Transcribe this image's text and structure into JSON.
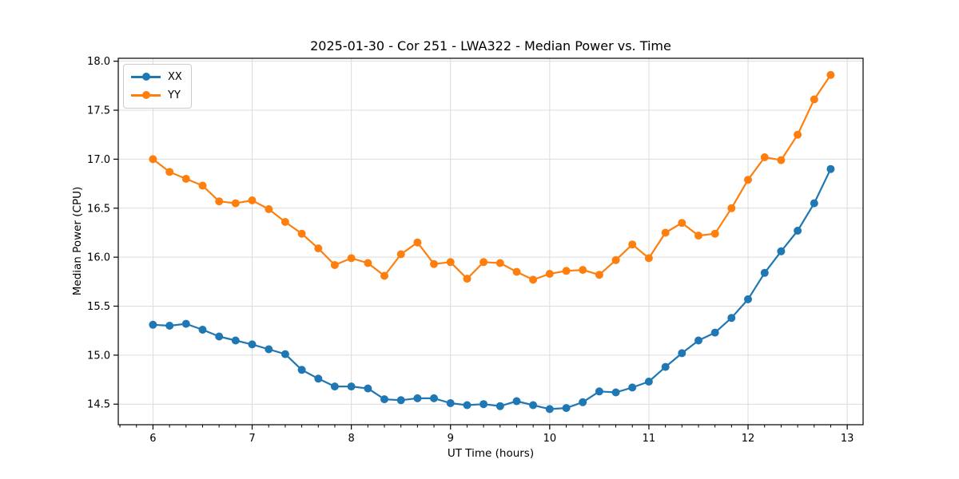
{
  "chart_data": {
    "type": "line",
    "title": "2025-01-30 - Cor 251 - LWA322 - Median Power vs. Time",
    "xlabel": "UT Time (hours)",
    "ylabel": "Median Power (CPU)",
    "xlim": [
      5.65,
      13.16
    ],
    "ylim": [
      14.29,
      18.03
    ],
    "x_major_ticks": [
      6,
      7,
      8,
      9,
      10,
      11,
      12,
      13
    ],
    "x_minor_subdivisions": 6,
    "y_ticks": [
      14.5,
      15.0,
      15.5,
      16.0,
      16.5,
      17.0,
      17.5,
      18.0
    ],
    "grid": true,
    "grid_color": "#dcdcdc",
    "axis_color": "#000000",
    "legend_position": "upper-left",
    "x": [
      6.0,
      6.167,
      6.333,
      6.5,
      6.667,
      6.833,
      7.0,
      7.167,
      7.333,
      7.5,
      7.667,
      7.833,
      8.0,
      8.167,
      8.333,
      8.5,
      8.667,
      8.833,
      9.0,
      9.167,
      9.333,
      9.5,
      9.667,
      9.833,
      10.0,
      10.167,
      10.333,
      10.5,
      10.667,
      10.833,
      11.0,
      11.167,
      11.333,
      11.5,
      11.667,
      11.833,
      12.0,
      12.167,
      12.333,
      12.5,
      12.667,
      12.833
    ],
    "series": [
      {
        "name": "XX",
        "color": "#1f77b4",
        "values": [
          15.31,
          15.3,
          15.32,
          15.26,
          15.19,
          15.15,
          15.11,
          15.06,
          15.01,
          14.85,
          14.76,
          14.68,
          14.68,
          14.66,
          14.55,
          14.54,
          14.56,
          14.56,
          14.51,
          14.49,
          14.5,
          14.48,
          14.53,
          14.49,
          14.45,
          14.46,
          14.52,
          14.63,
          14.62,
          14.67,
          14.73,
          14.88,
          15.02,
          15.15,
          15.23,
          15.38,
          15.57,
          15.84,
          16.06,
          16.27,
          16.55,
          16.9
        ]
      },
      {
        "name": "YY",
        "color": "#ff7f0e",
        "values": [
          17.0,
          16.87,
          16.8,
          16.73,
          16.57,
          16.55,
          16.58,
          16.49,
          16.36,
          16.24,
          16.09,
          15.92,
          15.99,
          15.94,
          15.81,
          16.03,
          16.15,
          15.93,
          15.95,
          15.78,
          15.95,
          15.94,
          15.85,
          15.77,
          15.83,
          15.86,
          15.87,
          15.82,
          15.97,
          16.13,
          15.99,
          16.25,
          16.35,
          16.22,
          16.24,
          16.5,
          16.79,
          17.02,
          16.99,
          17.25,
          17.61,
          17.86
        ]
      }
    ]
  }
}
